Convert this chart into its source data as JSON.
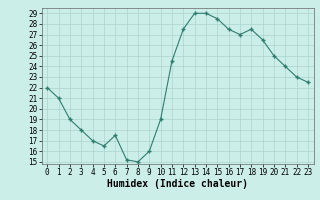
{
  "xlabel": "Humidex (Indice chaleur)",
  "x": [
    0,
    1,
    2,
    3,
    4,
    5,
    6,
    7,
    8,
    9,
    10,
    11,
    12,
    13,
    14,
    15,
    16,
    17,
    18,
    19,
    20,
    21,
    22,
    23
  ],
  "y": [
    22,
    21,
    19,
    18,
    17,
    16.5,
    17.5,
    15.2,
    15,
    16,
    19,
    24.5,
    27.5,
    29,
    29,
    28.5,
    27.5,
    27,
    27.5,
    26.5,
    25,
    24,
    23,
    22.5
  ],
  "ylim": [
    15,
    29
  ],
  "yticks": [
    15,
    16,
    17,
    18,
    19,
    20,
    21,
    22,
    23,
    24,
    25,
    26,
    27,
    28,
    29
  ],
  "xticks": [
    0,
    1,
    2,
    3,
    4,
    5,
    6,
    7,
    8,
    9,
    10,
    11,
    12,
    13,
    14,
    15,
    16,
    17,
    18,
    19,
    20,
    21,
    22,
    23
  ],
  "line_color": "#2e7d6e",
  "marker_color": "#2e7d6e",
  "bg_color": "#cceee8",
  "grid_color": "#aad4cc",
  "axis_fontsize": 6.5,
  "tick_fontsize": 5.5,
  "xlabel_fontsize": 7.0
}
